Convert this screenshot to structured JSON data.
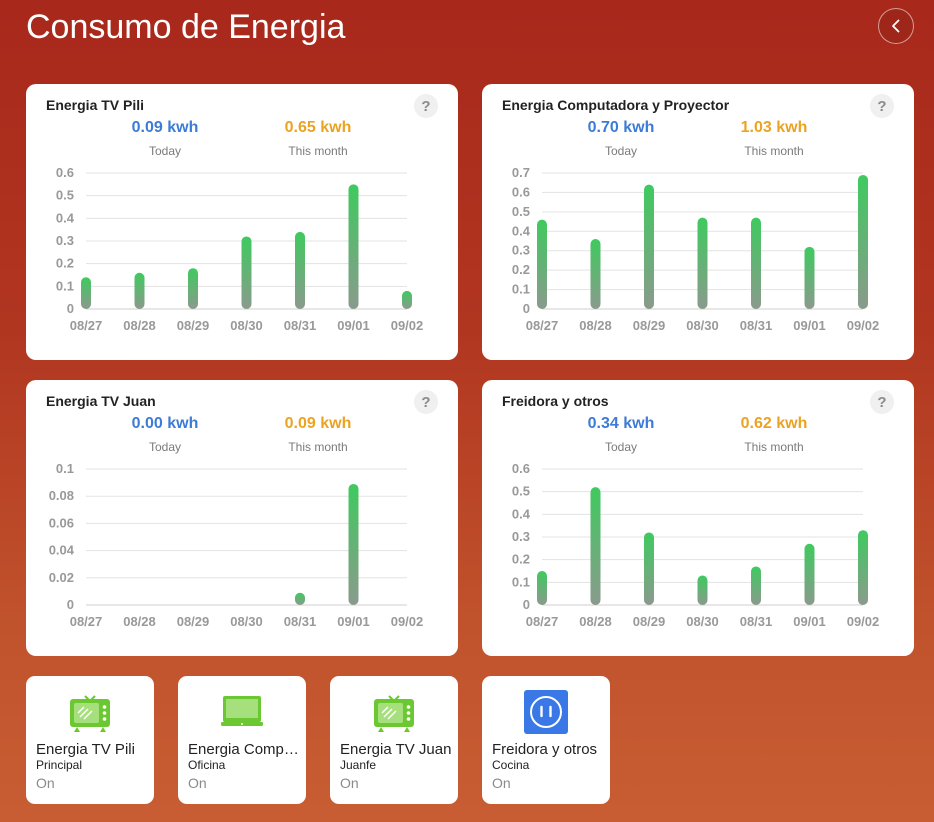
{
  "header": {
    "title": "Consumo de Energia"
  },
  "cards": [
    {
      "title": "Energia TV Pili",
      "today_value": "0.09 kwh",
      "today_label": "Today",
      "month_value": "0.65 kwh",
      "month_label": "This month",
      "chart_data": {
        "type": "bar",
        "categories": [
          "08/27",
          "08/28",
          "08/29",
          "08/30",
          "08/31",
          "09/01",
          "09/02"
        ],
        "values": [
          0.14,
          0.16,
          0.18,
          0.32,
          0.34,
          0.55,
          0.08
        ],
        "yticks": [
          "0",
          "0.1",
          "0.2",
          "0.3",
          "0.4",
          "0.5",
          "0.6"
        ],
        "ylim": [
          0,
          0.6
        ],
        "grid": true
      }
    },
    {
      "title": "Energia Computadora y Proyector",
      "today_value": "0.70 kwh",
      "today_label": "Today",
      "month_value": "1.03 kwh",
      "month_label": "This month",
      "chart_data": {
        "type": "bar",
        "categories": [
          "08/27",
          "08/28",
          "08/29",
          "08/30",
          "08/31",
          "09/01",
          "09/02"
        ],
        "values": [
          0.46,
          0.36,
          0.64,
          0.47,
          0.47,
          0.32,
          0.69
        ],
        "yticks": [
          "0",
          "0.1",
          "0.2",
          "0.3",
          "0.4",
          "0.5",
          "0.6",
          "0.7"
        ],
        "ylim": [
          0,
          0.7
        ],
        "grid": true
      }
    },
    {
      "title": "Energia TV Juan",
      "today_value": "0.00 kwh",
      "today_label": "Today",
      "month_value": "0.09 kwh",
      "month_label": "This month",
      "chart_data": {
        "type": "bar",
        "categories": [
          "08/27",
          "08/28",
          "08/29",
          "08/30",
          "08/31",
          "09/01",
          "09/02"
        ],
        "values": [
          0,
          0,
          0,
          0,
          0.009,
          0.089,
          0
        ],
        "yticks": [
          "0",
          "0.02",
          "0.04",
          "0.06",
          "0.08",
          "0.1"
        ],
        "ylim": [
          0,
          0.1
        ],
        "grid": true
      }
    },
    {
      "title": "Freidora y otros",
      "today_value": "0.34 kwh",
      "today_label": "Today",
      "month_value": "0.62 kwh",
      "month_label": "This month",
      "chart_data": {
        "type": "bar",
        "categories": [
          "08/27",
          "08/28",
          "08/29",
          "08/30",
          "08/31",
          "09/01",
          "09/02"
        ],
        "values": [
          0.15,
          0.52,
          0.32,
          0.13,
          0.17,
          0.27,
          0.33
        ],
        "yticks": [
          "0",
          "0.1",
          "0.2",
          "0.3",
          "0.4",
          "0.5",
          "0.6"
        ],
        "ylim": [
          0,
          0.6
        ],
        "grid": true
      }
    }
  ],
  "devices": [
    {
      "name": "Energia TV Pili",
      "room": "Principal",
      "state": "On",
      "icon": "tv-icon",
      "color": "#6cc832"
    },
    {
      "name": "Energia Computadora y Proyector",
      "room": "Oficina",
      "state": "On",
      "icon": "laptop-icon",
      "color": "#6cc832"
    },
    {
      "name": "Energia TV Juan",
      "room": "Juanfe",
      "state": "On",
      "icon": "tv-icon",
      "color": "#6cc832"
    },
    {
      "name": "Freidora y otros",
      "room": "Cocina",
      "state": "On",
      "icon": "power-socket-icon",
      "color": "#3a78e8"
    }
  ],
  "colors": {
    "today": "#3c7bd6",
    "month": "#eba324",
    "bar_top": "#3fca5f",
    "bar_bottom": "#8a9a8c"
  }
}
